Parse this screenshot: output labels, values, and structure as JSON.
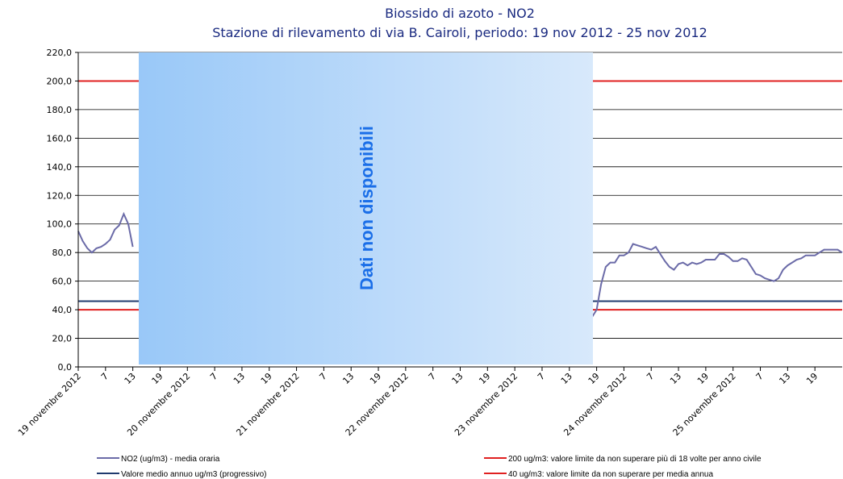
{
  "chart_data": {
    "type": "line",
    "title": "Biossido di azoto - NO2",
    "subtitle": "Stazione di rilevamento di via B. Cairoli, periodo: 19 nov 2012 - 25 nov 2012",
    "annotation": "Dati non disponibili",
    "x": [
      0,
      1,
      2,
      3,
      4,
      5,
      6,
      7,
      8,
      9,
      10,
      11,
      12,
      13,
      14,
      15,
      16,
      17,
      18,
      19,
      20,
      21,
      22,
      23,
      24,
      25,
      26,
      27,
      28,
      29,
      30,
      31,
      32,
      33,
      34,
      35,
      36,
      37,
      38,
      39,
      40,
      41,
      42,
      43,
      44,
      45,
      46,
      47,
      48,
      49,
      50,
      51,
      52,
      53,
      54,
      55,
      56,
      57,
      58,
      59,
      60,
      61,
      62,
      63,
      64,
      65,
      66,
      67,
      68,
      69,
      70,
      71,
      72,
      73,
      74,
      75,
      76,
      77,
      78,
      79,
      80,
      81,
      82,
      83,
      84,
      85,
      86,
      87,
      88,
      89,
      90,
      91,
      92,
      93,
      94,
      95,
      96,
      97,
      98,
      99,
      100,
      101,
      102,
      103,
      104,
      105,
      106,
      107,
      108,
      109,
      110,
      111,
      112,
      113,
      114,
      115,
      116,
      117,
      118,
      119,
      120,
      121,
      122,
      123,
      124,
      125,
      126,
      127,
      128,
      129,
      130,
      131,
      132,
      133,
      134,
      135,
      136,
      137,
      138,
      139,
      140,
      141,
      142,
      143,
      144,
      145,
      146,
      147,
      148,
      149,
      150,
      151,
      152,
      153,
      154,
      155,
      156,
      157,
      158,
      159,
      160,
      161,
      162,
      163,
      164,
      165,
      166,
      167,
      168
    ],
    "series": [
      {
        "name": "NO2 (ug/m3)  - media oraria",
        "color": "#6b6ba8",
        "values": [
          95,
          88,
          83,
          80,
          83,
          84,
          86,
          89,
          96,
          99,
          107,
          100,
          84,
          null,
          null,
          null,
          null,
          null,
          null,
          null,
          null,
          null,
          null,
          null,
          null,
          null,
          null,
          null,
          null,
          null,
          null,
          null,
          null,
          null,
          null,
          null,
          null,
          null,
          null,
          null,
          null,
          null,
          null,
          null,
          null,
          null,
          null,
          null,
          null,
          null,
          null,
          null,
          null,
          null,
          null,
          null,
          null,
          null,
          null,
          null,
          null,
          null,
          null,
          null,
          null,
          null,
          null,
          null,
          null,
          null,
          null,
          null,
          null,
          null,
          null,
          null,
          null,
          null,
          null,
          null,
          null,
          null,
          null,
          null,
          null,
          null,
          null,
          null,
          null,
          null,
          null,
          null,
          null,
          null,
          null,
          null,
          null,
          null,
          null,
          null,
          null,
          null,
          null,
          null,
          null,
          null,
          null,
          null,
          null,
          null,
          null,
          null,
          null,
          35,
          40,
          58,
          70,
          73,
          73,
          78,
          78,
          80,
          86,
          85,
          84,
          83,
          82,
          84,
          79,
          74,
          70,
          68,
          72,
          73,
          71,
          73,
          72,
          73,
          75,
          75,
          75,
          79,
          79,
          77,
          74,
          74,
          76,
          75,
          70,
          65,
          64,
          62,
          61,
          60,
          62,
          68,
          71,
          73,
          75,
          76,
          78,
          78,
          78,
          80,
          82,
          82,
          82,
          82,
          80
        ]
      }
    ],
    "reference_lines": [
      {
        "name": "Valore medio annuo ug/m3 (progressivo)",
        "value": 46,
        "color": "#1f3a6e"
      },
      {
        "name": "200 ug/m3: valore limite da non superare più di 18 volte per anno civile",
        "value": 200,
        "color": "#e02020"
      },
      {
        "name": "40 ug/m3: valore limite da non superare per media annua",
        "value": 40,
        "color": "#e02020"
      }
    ],
    "xlim": [
      0,
      168
    ],
    "xticks": [
      {
        "value": 0,
        "label": "19 novembre 2012"
      },
      {
        "value": 6,
        "label": "7"
      },
      {
        "value": 12,
        "label": "13"
      },
      {
        "value": 18,
        "label": "19"
      },
      {
        "value": 24,
        "label": "20 novembre 2012"
      },
      {
        "value": 30,
        "label": "7"
      },
      {
        "value": 36,
        "label": "13"
      },
      {
        "value": 42,
        "label": "19"
      },
      {
        "value": 48,
        "label": "21 novembre 2012"
      },
      {
        "value": 54,
        "label": "7"
      },
      {
        "value": 60,
        "label": "13"
      },
      {
        "value": 66,
        "label": "19"
      },
      {
        "value": 72,
        "label": "22 novembre 2012"
      },
      {
        "value": 78,
        "label": "7"
      },
      {
        "value": 84,
        "label": "13"
      },
      {
        "value": 90,
        "label": "19"
      },
      {
        "value": 96,
        "label": "23 novembre 2012"
      },
      {
        "value": 102,
        "label": "7"
      },
      {
        "value": 108,
        "label": "13"
      },
      {
        "value": 114,
        "label": "19"
      },
      {
        "value": 120,
        "label": "24 novembre 2012"
      },
      {
        "value": 126,
        "label": "7"
      },
      {
        "value": 132,
        "label": "13"
      },
      {
        "value": 138,
        "label": "19"
      },
      {
        "value": 144,
        "label": "25 novembre 2012"
      },
      {
        "value": 150,
        "label": "7"
      },
      {
        "value": 156,
        "label": "13"
      },
      {
        "value": 162,
        "label": "19"
      }
    ],
    "ylim": [
      0,
      220
    ],
    "yticks": [
      {
        "value": 0,
        "label": "0,0"
      },
      {
        "value": 20,
        "label": "20,0"
      },
      {
        "value": 40,
        "label": "40,0"
      },
      {
        "value": 60,
        "label": "60,0"
      },
      {
        "value": 80,
        "label": "80,0"
      },
      {
        "value": 100,
        "label": "100,0"
      },
      {
        "value": 120,
        "label": "120,0"
      },
      {
        "value": 140,
        "label": "140,0"
      },
      {
        "value": 160,
        "label": "160,0"
      },
      {
        "value": 180,
        "label": "180,0"
      },
      {
        "value": 200,
        "label": "200,0"
      },
      {
        "value": 220,
        "label": "220,0"
      }
    ],
    "grid": true
  }
}
